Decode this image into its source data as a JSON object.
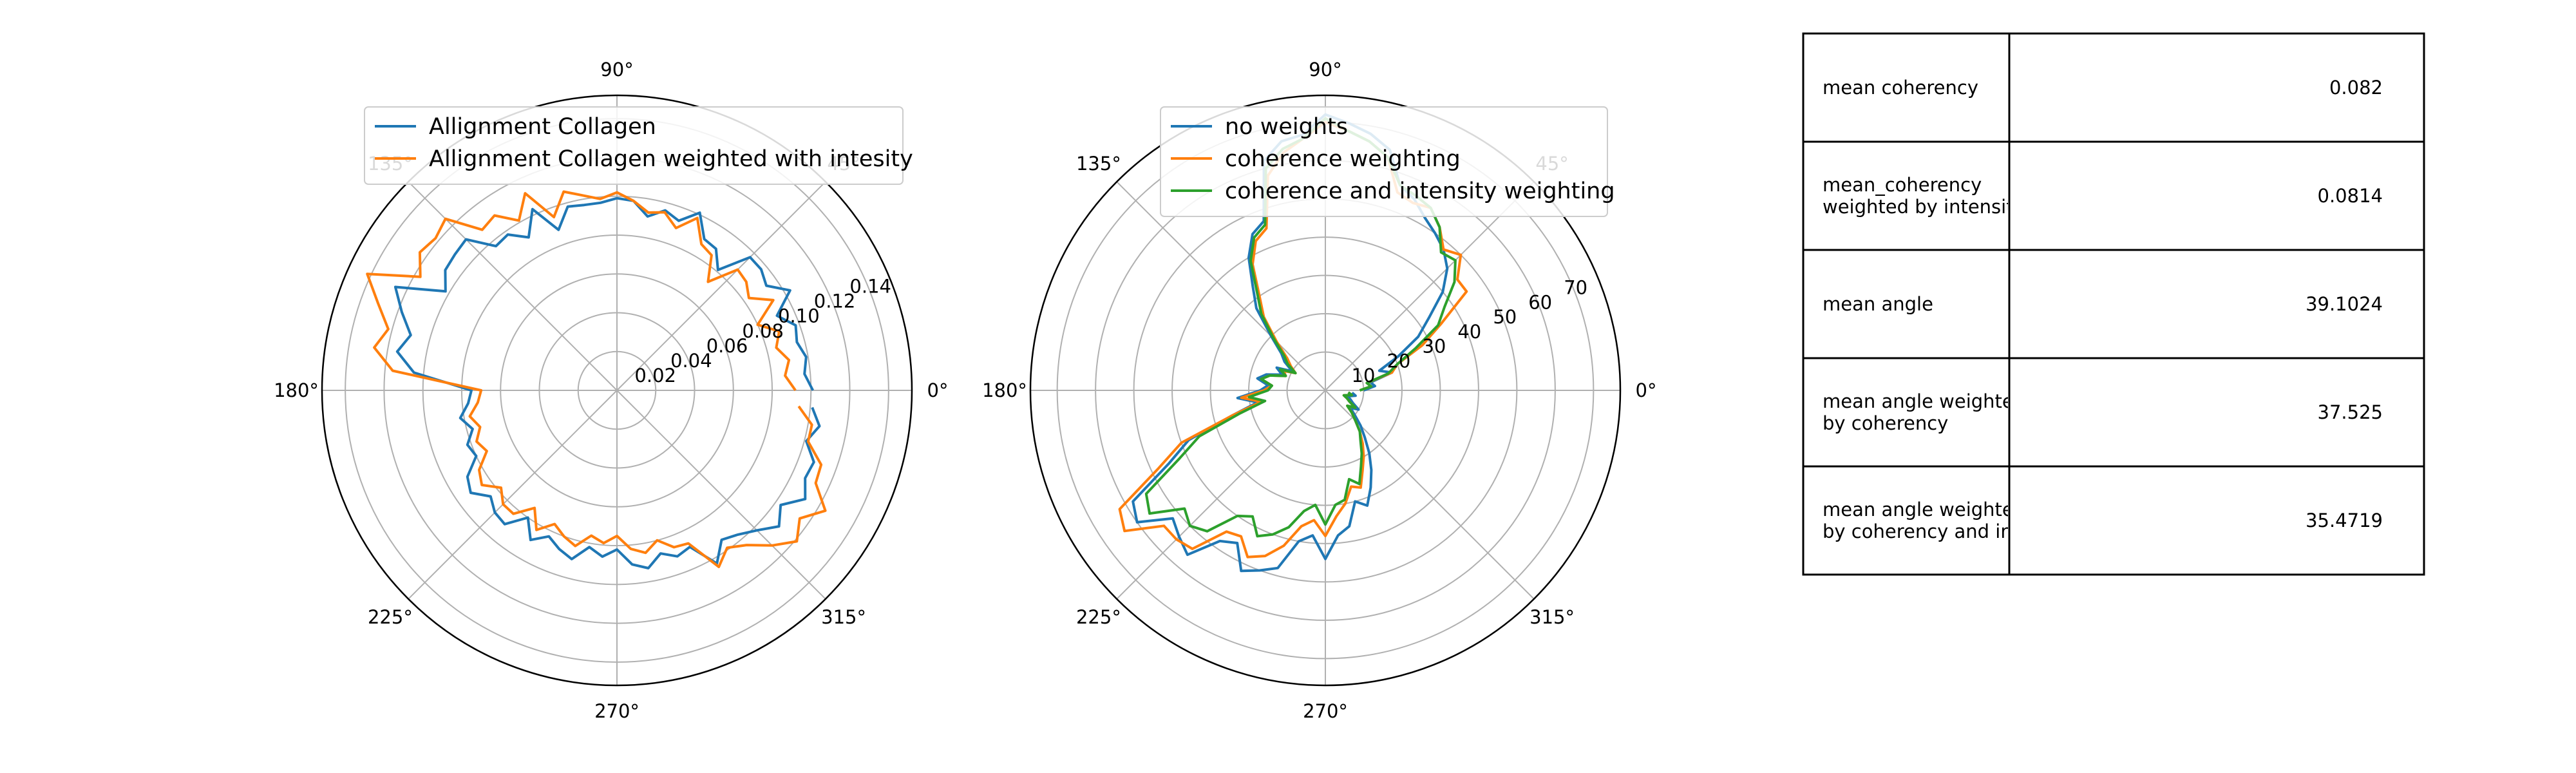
{
  "chart_data": [
    {
      "type": "line",
      "polar": true,
      "theta_ticks": [
        "0°",
        "45°",
        "90°",
        "135°",
        "180°",
        "225°",
        "270°",
        "315°"
      ],
      "radial_ticks": [
        "0.02",
        "0.04",
        "0.06",
        "0.08",
        "0.10",
        "0.12",
        "0.14"
      ],
      "radial_tick_values": [
        0.02,
        0.04,
        0.06,
        0.08,
        0.1,
        0.12,
        0.14
      ],
      "rlim": [
        0,
        0.152
      ],
      "grid": true,
      "legend_position": "top-center",
      "series": [
        {
          "name": "Allignment Collagen",
          "color": "#1f77b4",
          "theta_deg": [
            0,
            5,
            10,
            15,
            20,
            25,
            30,
            35,
            40,
            45,
            50,
            55,
            60,
            65,
            70,
            75,
            80,
            85,
            90,
            95,
            100,
            105,
            110,
            115,
            120,
            125,
            130,
            135,
            140,
            145,
            150,
            155,
            160,
            165,
            170,
            175,
            180,
            185,
            190,
            195,
            200,
            205,
            210,
            215,
            220,
            225,
            230,
            235,
            240,
            245,
            250,
            255,
            260,
            265,
            270,
            275,
            280,
            285,
            290,
            295,
            300,
            305,
            310,
            315,
            320,
            325,
            330,
            335,
            340,
            345,
            350,
            355
          ],
          "r": [
            0.101,
            0.097,
            0.099,
            0.096,
            0.098,
            0.091,
            0.103,
            0.094,
            0.097,
            0.097,
            0.081,
            0.089,
            0.09,
            0.101,
            0.093,
            0.096,
            0.091,
            0.098,
            0.099,
            0.097,
            0.097,
            0.098,
            0.088,
            0.103,
            0.091,
            0.098,
            0.097,
            0.11,
            0.109,
            0.108,
            0.102,
            0.126,
            0.118,
            0.11,
            0.115,
            0.105,
            0.075,
            0.077,
            0.082,
            0.077,
            0.082,
            0.08,
            0.089,
            0.092,
            0.085,
            0.089,
            0.09,
            0.08,
            0.089,
            0.083,
            0.087,
            0.09,
            0.082,
            0.086,
            0.082,
            0.09,
            0.093,
            0.087,
            0.091,
            0.089,
            0.103,
            0.094,
            0.097,
            0.102,
            0.109,
            0.103,
            0.112,
            0.107,
            0.108,
            0.101,
            0.106,
            0.101
          ]
        },
        {
          "name": "Allignment Collagen weighted with intesity",
          "color": "#ff7f0e",
          "theta_deg": [
            0,
            5,
            10,
            15,
            20,
            25,
            30,
            35,
            40,
            45,
            50,
            55,
            60,
            65,
            70,
            75,
            80,
            85,
            90,
            95,
            100,
            105,
            110,
            115,
            120,
            125,
            130,
            135,
            140,
            145,
            150,
            155,
            160,
            165,
            170,
            175,
            180,
            185,
            190,
            195,
            200,
            205,
            210,
            215,
            220,
            225,
            230,
            235,
            240,
            245,
            250,
            255,
            260,
            265,
            270,
            275,
            280,
            285,
            290,
            295,
            300,
            305,
            310,
            315,
            320,
            325,
            330,
            335,
            340,
            345,
            350,
            355
          ],
          "r": [
            0.092,
            0.087,
            0.09,
            0.085,
            0.089,
            0.08,
            0.093,
            0.083,
            0.087,
            0.088,
            0.073,
            0.085,
            0.087,
            0.098,
            0.089,
            0.095,
            0.093,
            0.098,
            0.102,
            0.099,
            0.102,
            0.106,
            0.095,
            0.112,
            0.101,
            0.11,
            0.108,
            0.125,
            0.122,
            0.124,
            0.117,
            0.142,
            0.131,
            0.122,
            0.127,
            0.116,
            0.07,
            0.072,
            0.077,
            0.073,
            0.077,
            0.074,
            0.082,
            0.085,
            0.078,
            0.083,
            0.083,
            0.074,
            0.083,
            0.076,
            0.08,
            0.083,
            0.076,
            0.079,
            0.075,
            0.082,
            0.085,
            0.08,
            0.086,
            0.087,
            0.105,
            0.099,
            0.104,
            0.113,
            0.121,
            0.115,
            0.124,
            0.113,
            0.112,
            0.102,
            0.102,
            0.094
          ]
        }
      ]
    },
    {
      "type": "line",
      "polar": true,
      "theta_ticks": [
        "0°",
        "45°",
        "90°",
        "135°",
        "180°",
        "225°",
        "270°",
        "315°"
      ],
      "radial_ticks": [
        "10",
        "20",
        "30",
        "40",
        "50",
        "60",
        "70"
      ],
      "radial_tick_values": [
        10,
        20,
        30,
        40,
        50,
        60,
        70
      ],
      "rlim": [
        0,
        77
      ],
      "grid": true,
      "legend_position": "top-center",
      "series": [
        {
          "name": "no weights",
          "color": "#1f77b4",
          "theta_deg": [
            0,
            5,
            10,
            15,
            20,
            25,
            30,
            35,
            40,
            45,
            50,
            55,
            60,
            65,
            70,
            75,
            80,
            85,
            90,
            95,
            100,
            105,
            110,
            115,
            120,
            125,
            130,
            135,
            140,
            145,
            150,
            155,
            160,
            165,
            170,
            175,
            180,
            185,
            190,
            195,
            200,
            205,
            210,
            215,
            220,
            225,
            230,
            235,
            240,
            245,
            250,
            255,
            260,
            265,
            270,
            275,
            280,
            285,
            290,
            295,
            300,
            305,
            310,
            315,
            320,
            325,
            330,
            335,
            340,
            345,
            350,
            355
          ],
          "r": [
            10,
            13,
            12,
            18,
            15,
            21,
            28,
            33,
            40,
            45,
            48,
            50,
            52,
            55,
            57,
            65,
            68,
            70,
            72,
            67,
            66,
            62,
            47,
            45,
            40,
            33,
            28,
            20,
            15,
            13,
            10,
            14,
            12,
            16,
            18,
            15,
            17,
            23,
            18,
            25,
            38,
            45,
            58,
            60,
            52,
            54,
            56,
            48,
            46,
            52,
            50,
            48,
            40,
            38,
            44,
            38,
            36,
            30,
            32,
            28,
            24,
            20,
            16,
            13,
            10,
            8,
            10,
            8,
            7,
            6,
            8,
            7
          ]
        },
        {
          "name": "coherence weighting",
          "color": "#ff7f0e",
          "theta_deg": [
            0,
            5,
            10,
            15,
            20,
            25,
            30,
            35,
            40,
            45,
            50,
            55,
            60,
            65,
            70,
            75,
            80,
            85,
            90,
            95,
            100,
            105,
            110,
            115,
            120,
            125,
            130,
            135,
            140,
            145,
            150,
            155,
            160,
            165,
            170,
            175,
            180,
            185,
            190,
            195,
            200,
            205,
            210,
            215,
            220,
            225,
            230,
            235,
            240,
            245,
            250,
            255,
            260,
            265,
            270,
            275,
            280,
            285,
            290,
            295,
            300,
            305,
            310,
            315,
            320,
            325,
            330,
            335,
            340,
            345,
            350,
            355
          ],
          "r": [
            9,
            12,
            11,
            18,
            20,
            28,
            35,
            45,
            45,
            50,
            48,
            52,
            55,
            54,
            55,
            63,
            66,
            68,
            70,
            66,
            63,
            58,
            45,
            43,
            38,
            30,
            25,
            18,
            13,
            11,
            9,
            12,
            11,
            15,
            17,
            14,
            16,
            22,
            17,
            25,
            40,
            48,
            62,
            64,
            55,
            55,
            54,
            45,
            44,
            48,
            46,
            42,
            36,
            34,
            38,
            33,
            30,
            26,
            27,
            23,
            20,
            17,
            14,
            11,
            9,
            7,
            9,
            7,
            6,
            5,
            7,
            6
          ]
        },
        {
          "name": "coherence and intensity weighting",
          "color": "#2ca02c",
          "theta_deg": [
            0,
            5,
            10,
            15,
            20,
            25,
            30,
            35,
            40,
            45,
            50,
            55,
            60,
            65,
            70,
            75,
            80,
            85,
            90,
            95,
            100,
            105,
            110,
            115,
            120,
            125,
            130,
            135,
            140,
            145,
            150,
            155,
            160,
            165,
            170,
            175,
            180,
            185,
            190,
            195,
            200,
            205,
            210,
            215,
            220,
            225,
            230,
            235,
            240,
            245,
            250,
            255,
            260,
            265,
            270,
            275,
            280,
            285,
            290,
            295,
            300,
            305,
            310,
            315,
            320,
            325,
            330,
            335,
            340,
            345,
            350,
            355
          ],
          "r": [
            9,
            12,
            11,
            17,
            20,
            26,
            34,
            38,
            44,
            48,
            47,
            52,
            55,
            56,
            57,
            63,
            66,
            68,
            71,
            66,
            64,
            60,
            46,
            44,
            39,
            31,
            26,
            19,
            14,
            12,
            9,
            13,
            11,
            15,
            17,
            14,
            15,
            20,
            16,
            23,
            35,
            42,
            54,
            56,
            48,
            50,
            48,
            40,
            38,
            42,
            40,
            37,
            32,
            30,
            35,
            30,
            29,
            24,
            26,
            22,
            19,
            16,
            14,
            11,
            9,
            7,
            9,
            7,
            6,
            5,
            7,
            6
          ]
        }
      ]
    },
    {
      "type": "table",
      "rows": [
        {
          "label": [
            "mean coherency"
          ],
          "value": "0.082"
        },
        {
          "label": [
            "mean_coherency",
            "weighted by intensit"
          ],
          "value": "0.0814"
        },
        {
          "label": [
            "mean angle"
          ],
          "value": "39.1024"
        },
        {
          "label": [
            "mean angle weighte",
            "by coherency"
          ],
          "value": "37.525"
        },
        {
          "label": [
            "mean angle weighte",
            "by coherency and in"
          ],
          "value": "35.4719"
        }
      ]
    }
  ]
}
